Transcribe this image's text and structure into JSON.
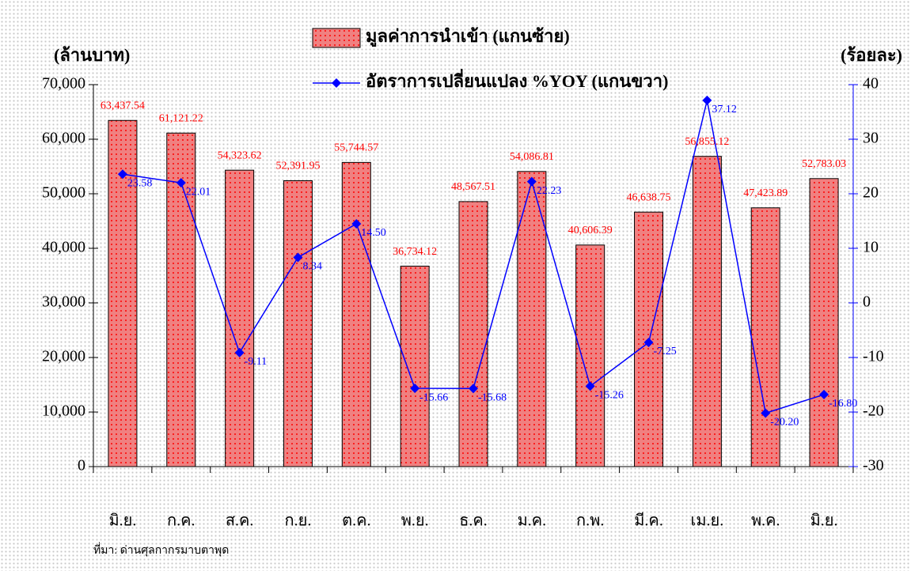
{
  "chart_data": {
    "type": "bar_line",
    "y_label": "(ล้านบาท)",
    "y2_label": "(ร้อยละ)",
    "source": "ที่มา: ด่านศุลกากรมาบตาพุด",
    "categories": [
      "มิ.ย.",
      "ก.ค.",
      "ส.ค.",
      "ก.ย.",
      "ต.ค.",
      "พ.ย.",
      "ธ.ค.",
      "ม.ค.",
      "ก.พ.",
      "มี.ค.",
      "เม.ย.",
      "พ.ค.",
      "มิ.ย."
    ],
    "series": [
      {
        "name": "มูลค่าการนำเข้า (แกนซ้าย)",
        "color": "#f08080",
        "label_color": "#ff0000",
        "type": "bar",
        "values": [
          63437.54,
          61121.22,
          54323.62,
          52391.95,
          55744.57,
          36734.12,
          48567.51,
          54086.81,
          40606.39,
          46638.75,
          56855.12,
          47423.89,
          52783.03
        ],
        "value_labels": [
          "63,437.54",
          "61,121.22",
          "54,323.62",
          "52,391.95",
          "55,744.57",
          "36,734.12",
          "48,567.51",
          "54,086.81",
          "40,606.39",
          "46,638.75",
          "56,855.12",
          "47,423.89",
          "52,783.03"
        ]
      },
      {
        "name": "อัตราการเปลี่ยนแปลง %YOY (แกนขวา)",
        "color": "#0000ff",
        "type": "line",
        "axis": "y2",
        "values": [
          23.58,
          22.01,
          -9.11,
          8.34,
          14.5,
          -15.66,
          -15.68,
          22.23,
          -15.26,
          -7.25,
          37.12,
          -20.2,
          -16.8
        ],
        "value_labels": [
          "23.58",
          "22.01",
          "-9.11",
          "8.34",
          "14.50",
          "-15.66",
          "-15.68",
          "22.23",
          "-15.26",
          "-7.25",
          "37.12",
          "-20.20",
          "-16.80"
        ]
      }
    ],
    "ylim": [
      0,
      70000
    ],
    "yticks": [
      0,
      {
        "value": 10000,
        "label": "10,000"
      },
      {
        "value": 20000,
        "label": "20,000"
      },
      {
        "value": 30000,
        "label": "30,000"
      },
      {
        "value": 40000,
        "label": "40,000"
      },
      {
        "value": 50000,
        "label": "50,000"
      },
      {
        "value": 60000,
        "label": "60,000"
      },
      {
        "value": 70000,
        "label": "70,000"
      }
    ],
    "y2lim": [
      -30,
      40
    ],
    "y2ticks": [
      -30,
      -20,
      -10,
      0,
      10,
      20,
      30,
      40
    ]
  }
}
